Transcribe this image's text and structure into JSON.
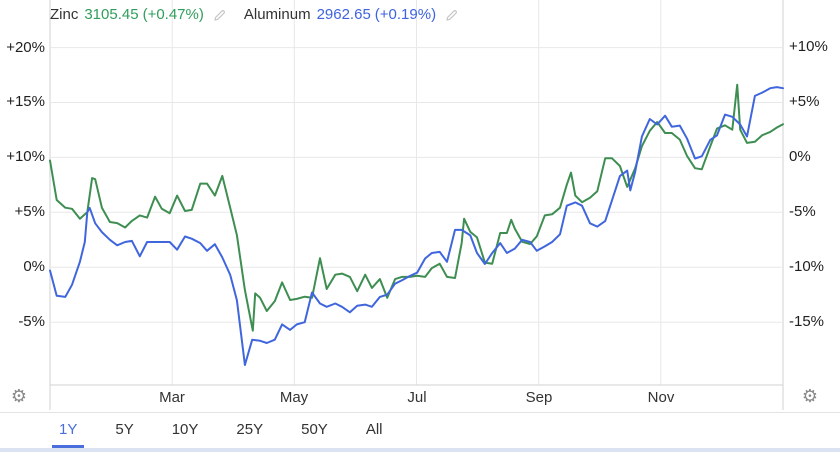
{
  "legend": {
    "items": [
      {
        "name": "Zinc",
        "value": "3105.45",
        "change": "(+0.47%)",
        "color": "#2f9e5b"
      },
      {
        "name": "Aluminum",
        "value": "2962.65",
        "change": "(+0.19%)",
        "color": "#3e63e0"
      }
    ]
  },
  "icons": {
    "gear": "⚙",
    "edit_pencil": "pencil-outline"
  },
  "tabs": {
    "items": [
      "1Y",
      "5Y",
      "10Y",
      "25Y",
      "50Y",
      "All"
    ],
    "active": "1Y"
  },
  "colors": {
    "grid": "#e8e8e8",
    "plot_border": "#d2d2d2",
    "axis_text": "#1f1f1f",
    "tab_active": "#4a6edb",
    "bottom_strip": "#dbe2f1",
    "gear": "#8a8a8a",
    "pencil": "#c6c6c6"
  },
  "chart_data": {
    "type": "line",
    "x_axis": {
      "domain_months": [
        0,
        12
      ],
      "grid_months": [
        0,
        2,
        4,
        6,
        8,
        10,
        12
      ],
      "tick_months": [
        2,
        4,
        6,
        8,
        10
      ],
      "tick_labels": [
        "Mar",
        "May",
        "Jul",
        "Sep",
        "Nov"
      ]
    },
    "left_axis": {
      "series": "Aluminum",
      "tick_values": [
        20,
        15,
        10,
        5,
        0,
        -5
      ],
      "tick_labels": [
        "+20%",
        "+15%",
        "+10%",
        "+5%",
        "0%",
        "-5%"
      ],
      "range": [
        -10.72,
        20.69
      ]
    },
    "right_axis": {
      "series": "Zinc",
      "tick_values": [
        10,
        5,
        0,
        -5,
        -10,
        -15
      ],
      "tick_labels": [
        "+10%",
        "+5%",
        "0%",
        "-5%",
        "-10%",
        "-15%"
      ],
      "range": [
        -20.74,
        10.67
      ]
    },
    "series": [
      {
        "name": "Zinc",
        "axis": "right",
        "color": "#3e8e52",
        "unit": "% change",
        "points": [
          [
            0,
            -0.3
          ],
          [
            0.11,
            -3.9
          ],
          [
            0.25,
            -4.6
          ],
          [
            0.36,
            -4.7
          ],
          [
            0.49,
            -5.6
          ],
          [
            0.61,
            -5
          ],
          [
            0.69,
            -1.9
          ],
          [
            0.74,
            -2
          ],
          [
            0.85,
            -4.6
          ],
          [
            0.98,
            -5.9
          ],
          [
            1.1,
            -6
          ],
          [
            1.23,
            -6.4
          ],
          [
            1.34,
            -5.8
          ],
          [
            1.47,
            -5.3
          ],
          [
            1.59,
            -5.5
          ],
          [
            1.72,
            -3.6
          ],
          [
            1.83,
            -4.7
          ],
          [
            1.96,
            -5.1
          ],
          [
            2.08,
            -3.5
          ],
          [
            2.21,
            -4.9
          ],
          [
            2.32,
            -4.8
          ],
          [
            2.46,
            -2.4
          ],
          [
            2.57,
            -2.4
          ],
          [
            2.7,
            -3.5
          ],
          [
            2.82,
            -1.7
          ],
          [
            2.95,
            -4.6
          ],
          [
            3.06,
            -7.1
          ],
          [
            3.19,
            -12.1
          ],
          [
            3.32,
            -15.8
          ],
          [
            3.36,
            -12.4
          ],
          [
            3.44,
            -12.8
          ],
          [
            3.55,
            -14
          ],
          [
            3.68,
            -13.1
          ],
          [
            3.8,
            -11.4
          ],
          [
            3.93,
            -13
          ],
          [
            4.04,
            -12.9
          ],
          [
            4.17,
            -12.7
          ],
          [
            4.29,
            -12.8
          ],
          [
            4.42,
            -9.2
          ],
          [
            4.53,
            -12
          ],
          [
            4.67,
            -10.7
          ],
          [
            4.78,
            -10.6
          ],
          [
            4.91,
            -10.9
          ],
          [
            5.03,
            -12.2
          ],
          [
            5.16,
            -10.7
          ],
          [
            5.27,
            -11.9
          ],
          [
            5.4,
            -11.1
          ],
          [
            5.52,
            -12.8
          ],
          [
            5.65,
            -11.1
          ],
          [
            5.76,
            -10.9
          ],
          [
            5.89,
            -10.9
          ],
          [
            6.01,
            -10.8
          ],
          [
            6.14,
            -10.9
          ],
          [
            6.25,
            -10.1
          ],
          [
            6.38,
            -9.7
          ],
          [
            6.5,
            -10.9
          ],
          [
            6.63,
            -11
          ],
          [
            6.74,
            -7.8
          ],
          [
            6.78,
            -5.6
          ],
          [
            6.88,
            -6.8
          ],
          [
            6.99,
            -7.3
          ],
          [
            7.12,
            -9.6
          ],
          [
            7.24,
            -9.7
          ],
          [
            7.37,
            -6.9
          ],
          [
            7.48,
            -6.9
          ],
          [
            7.55,
            -5.7
          ],
          [
            7.61,
            -6.5
          ],
          [
            7.73,
            -7.7
          ],
          [
            7.86,
            -7.9
          ],
          [
            7.97,
            -7.2
          ],
          [
            8.1,
            -5.3
          ],
          [
            8.22,
            -5.2
          ],
          [
            8.35,
            -4.6
          ],
          [
            8.46,
            -2.5
          ],
          [
            8.53,
            -1.4
          ],
          [
            8.6,
            -3.5
          ],
          [
            8.71,
            -4.1
          ],
          [
            8.84,
            -3.7
          ],
          [
            8.96,
            -3.1
          ],
          [
            9.09,
            -0.1
          ],
          [
            9.2,
            -0.1
          ],
          [
            9.33,
            -0.8
          ],
          [
            9.45,
            -2.7
          ],
          [
            9.58,
            -1
          ],
          [
            9.69,
            1
          ],
          [
            9.82,
            2.4
          ],
          [
            9.94,
            3.2
          ],
          [
            10.07,
            2.2
          ],
          [
            10.18,
            2.2
          ],
          [
            10.31,
            1.6
          ],
          [
            10.43,
            0.1
          ],
          [
            10.56,
            -1
          ],
          [
            10.67,
            -1.1
          ],
          [
            10.81,
            1
          ],
          [
            10.92,
            2.6
          ],
          [
            11.05,
            2.9
          ],
          [
            11.17,
            2.5
          ],
          [
            11.25,
            6.6
          ],
          [
            11.3,
            2.5
          ],
          [
            11.41,
            1.3
          ],
          [
            11.54,
            1.4
          ],
          [
            11.66,
            2
          ],
          [
            11.79,
            2.3
          ],
          [
            11.9,
            2.7
          ],
          [
            12,
            3
          ]
        ]
      },
      {
        "name": "Aluminum",
        "axis": "left",
        "color": "#4066dd",
        "unit": "% change",
        "points": [
          [
            0,
            -0.3
          ],
          [
            0.11,
            -2.6
          ],
          [
            0.25,
            -2.7
          ],
          [
            0.36,
            -1.6
          ],
          [
            0.49,
            0.5
          ],
          [
            0.57,
            2.3
          ],
          [
            0.61,
            5
          ],
          [
            0.65,
            5.4
          ],
          [
            0.74,
            4
          ],
          [
            0.85,
            3.2
          ],
          [
            0.98,
            2.5
          ],
          [
            1.1,
            2
          ],
          [
            1.23,
            2.3
          ],
          [
            1.34,
            2.4
          ],
          [
            1.47,
            1
          ],
          [
            1.59,
            2.3
          ],
          [
            1.72,
            2.3
          ],
          [
            1.83,
            2.3
          ],
          [
            1.96,
            2.3
          ],
          [
            2.08,
            1.6
          ],
          [
            2.21,
            2.8
          ],
          [
            2.32,
            2.6
          ],
          [
            2.46,
            2.2
          ],
          [
            2.57,
            1.5
          ],
          [
            2.7,
            2.1
          ],
          [
            2.82,
            0.9
          ],
          [
            2.95,
            -0.7
          ],
          [
            3.06,
            -3
          ],
          [
            3.19,
            -8.9
          ],
          [
            3.31,
            -6.6
          ],
          [
            3.44,
            -6.7
          ],
          [
            3.55,
            -6.9
          ],
          [
            3.68,
            -6.6
          ],
          [
            3.8,
            -5.2
          ],
          [
            3.93,
            -5.7
          ],
          [
            4.04,
            -5.2
          ],
          [
            4.17,
            -5
          ],
          [
            4.29,
            -2.3
          ],
          [
            4.42,
            -3.3
          ],
          [
            4.53,
            -3.6
          ],
          [
            4.67,
            -3.3
          ],
          [
            4.78,
            -3.6
          ],
          [
            4.91,
            -4.1
          ],
          [
            5.03,
            -3.5
          ],
          [
            5.16,
            -3.4
          ],
          [
            5.27,
            -3.6
          ],
          [
            5.4,
            -2.7
          ],
          [
            5.52,
            -2.5
          ],
          [
            5.65,
            -1.5
          ],
          [
            5.76,
            -1.2
          ],
          [
            5.89,
            -0.8
          ],
          [
            6.01,
            -0.5
          ],
          [
            6.14,
            0.8
          ],
          [
            6.25,
            1.3
          ],
          [
            6.38,
            1.4
          ],
          [
            6.5,
            0.5
          ],
          [
            6.63,
            3.4
          ],
          [
            6.74,
            3.4
          ],
          [
            6.88,
            2.9
          ],
          [
            6.99,
            1.3
          ],
          [
            7.12,
            0.3
          ],
          [
            7.24,
            1.3
          ],
          [
            7.37,
            2.2
          ],
          [
            7.48,
            1.3
          ],
          [
            7.61,
            1.7
          ],
          [
            7.73,
            2.5
          ],
          [
            7.86,
            2.3
          ],
          [
            7.97,
            1.5
          ],
          [
            8.1,
            1.9
          ],
          [
            8.22,
            2.3
          ],
          [
            8.35,
            3
          ],
          [
            8.46,
            5.6
          ],
          [
            8.6,
            5.9
          ],
          [
            8.71,
            5.6
          ],
          [
            8.84,
            4
          ],
          [
            8.96,
            3.7
          ],
          [
            9.09,
            4.2
          ],
          [
            9.2,
            6.1
          ],
          [
            9.33,
            8.3
          ],
          [
            9.45,
            8.8
          ],
          [
            9.5,
            7
          ],
          [
            9.58,
            8.7
          ],
          [
            9.69,
            11.9
          ],
          [
            9.82,
            13.5
          ],
          [
            9.94,
            13
          ],
          [
            10.07,
            13.8
          ],
          [
            10.18,
            12.8
          ],
          [
            10.31,
            12.9
          ],
          [
            10.43,
            11.7
          ],
          [
            10.56,
            9.9
          ],
          [
            10.67,
            10.1
          ],
          [
            10.81,
            11.6
          ],
          [
            10.92,
            12
          ],
          [
            11.05,
            13.9
          ],
          [
            11.17,
            13.7
          ],
          [
            11.3,
            13
          ],
          [
            11.41,
            11.9
          ],
          [
            11.54,
            15.6
          ],
          [
            11.66,
            15.9
          ],
          [
            11.79,
            16.3
          ],
          [
            11.9,
            16.4
          ],
          [
            12,
            16.3
          ]
        ]
      }
    ]
  }
}
